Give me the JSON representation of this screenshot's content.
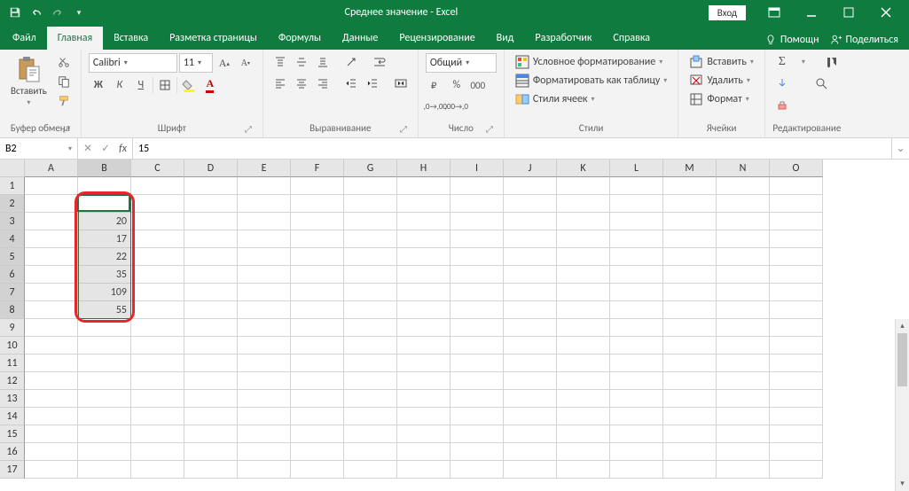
{
  "title": "Среднее значение  -  Excel",
  "login_label": "Вход",
  "tabs": [
    "Файл",
    "Главная",
    "Вставка",
    "Разметка страницы",
    "Формулы",
    "Данные",
    "Рецензирование",
    "Вид",
    "Разработчик",
    "Справка"
  ],
  "active_tab": 1,
  "help_label": "Помощн",
  "share_label": "Поделиться",
  "ribbon": {
    "clipboard": {
      "paste": "Вставить",
      "label": "Буфер обмена"
    },
    "font": {
      "name": "Calibri",
      "size": "11",
      "label": "Шрифт",
      "bold": "Ж",
      "italic": "К",
      "underline": "Ч"
    },
    "alignment": {
      "label": "Выравнивание"
    },
    "number": {
      "format": "Общий",
      "label": "Число"
    },
    "styles": {
      "cond": "Условное форматирование",
      "table": "Форматировать как таблицу",
      "cell": "Стили ячеек",
      "label": "Стили"
    },
    "cells": {
      "insert": "Вставить",
      "delete": "Удалить",
      "format": "Формат",
      "label": "Ячейки"
    },
    "editing": {
      "label": "Редактирование"
    }
  },
  "namebox": "B2",
  "formula_value": "15",
  "columns": [
    "A",
    "B",
    "C",
    "D",
    "E",
    "F",
    "G",
    "H",
    "I",
    "J",
    "K",
    "L",
    "M",
    "N",
    "O"
  ],
  "rows": 17,
  "selected_col": 1,
  "selected_rows": [
    2,
    8
  ],
  "data_cells": {
    "2": "15",
    "3": "20",
    "4": "17",
    "5": "22",
    "6": "35",
    "7": "109",
    "8": "55"
  },
  "colors": {
    "brand": "#0f7b3e",
    "sel": "#217446",
    "annot": "#e9262a"
  }
}
